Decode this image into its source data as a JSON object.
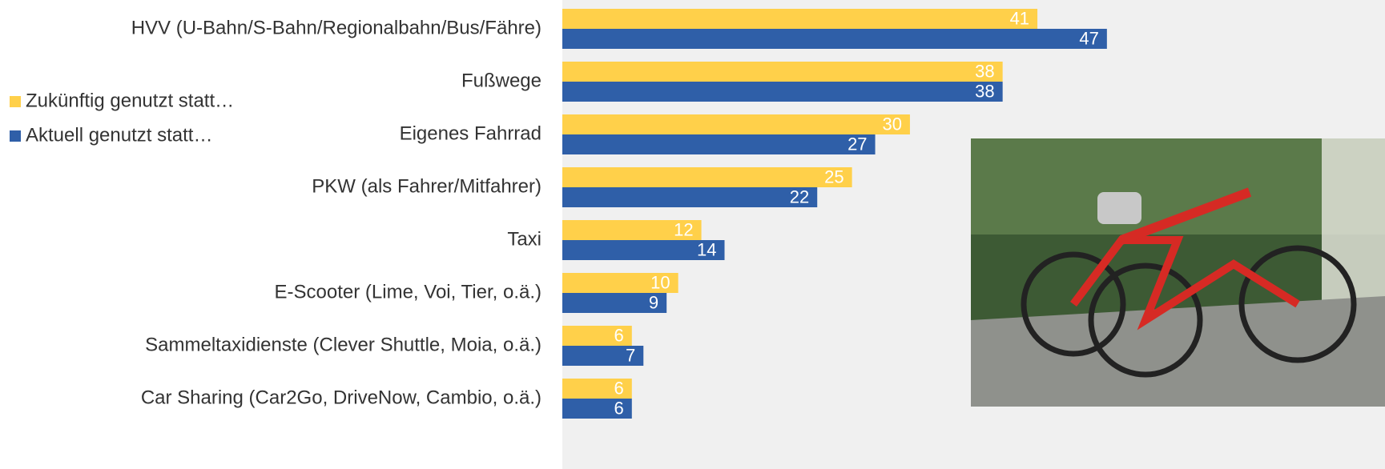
{
  "chart_data": {
    "type": "hbar",
    "categories": [
      "HVV (U-Bahn/S-Bahn/Regionalbahn/Bus/Fähre)",
      "Fußwege",
      "Eigenes Fahrrad",
      "PKW (als Fahrer/Mitfahrer)",
      "Taxi",
      "E-Scooter (Lime, Voi, Tier, o.ä.)",
      "Sammeltaxidienste (Clever Shuttle, Moia, o.ä.)",
      "Car Sharing (Car2Go, DriveNow, Cambio, o.ä.)"
    ],
    "series": [
      {
        "name": "Zukünftig genutzt statt…",
        "color": "#ffd04a",
        "values": [
          41,
          38,
          30,
          25,
          12,
          10,
          6,
          6
        ]
      },
      {
        "name": "Aktuell genutzt statt…",
        "color": "#2f5fa8",
        "values": [
          47,
          38,
          27,
          22,
          14,
          9,
          7,
          6
        ]
      }
    ],
    "xlim": [
      0,
      71
    ],
    "legend": "left"
  }
}
